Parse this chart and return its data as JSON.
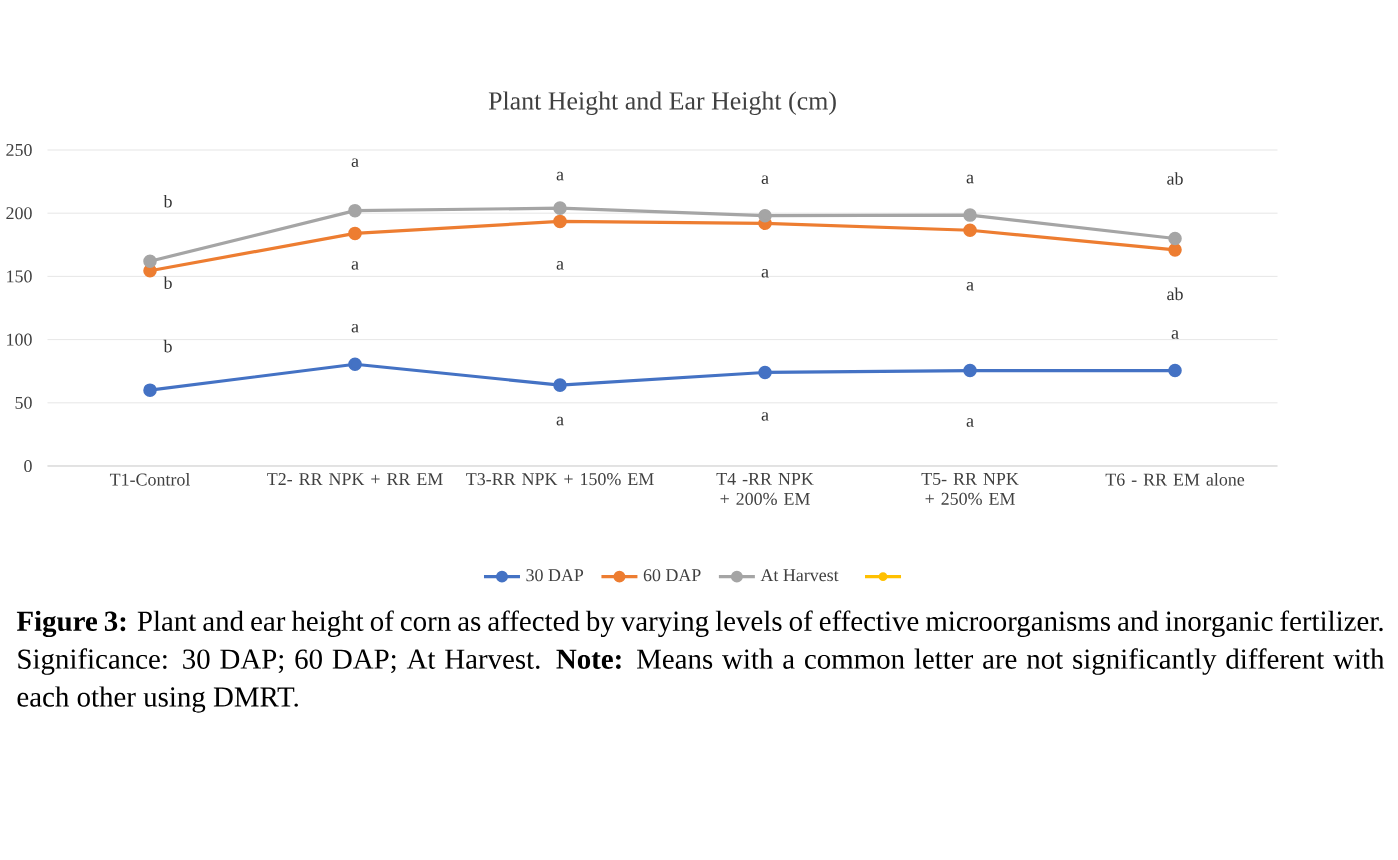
{
  "chart_data": {
    "type": "line",
    "title": "Plant Height and Ear Height (cm)",
    "categories": [
      "T1-Control",
      "T2- RR NPK + RR EM",
      "T3-RR NPK + 150% EM",
      "T4 -RR NPK + 200% EM",
      "T5- RR NPK + 250% EM",
      "T6 - RR EM alone"
    ],
    "series": [
      {
        "name": "30 DAP",
        "color": "#4472c4",
        "values": [
          60,
          80.5,
          64,
          74,
          75.5,
          75.5
        ]
      },
      {
        "name": "60 DAP",
        "color": "#ed7d31",
        "values": [
          154.5,
          184,
          193.5,
          192,
          186.5,
          171
        ]
      },
      {
        "name": "At Harvest",
        "color": "#a5a5a5",
        "values": [
          162,
          202,
          204,
          198,
          198.5,
          180
        ]
      }
    ],
    "ylim": [
      0,
      250
    ],
    "yticks": [
      0,
      50,
      100,
      150,
      200,
      250
    ],
    "grid": "y",
    "legend": "bottom",
    "marker": "circle",
    "line_style": "solid",
    "annotations": [
      "b",
      "a",
      "a",
      "a",
      "a",
      "ab",
      "b",
      "a",
      "a",
      "a",
      "a",
      "ab",
      "b",
      "a",
      "a",
      "a",
      "a",
      "a",
      "**Figure 3:** Plant and ear height of corn as affected by varying levels of effective microorganisms and inorganic fertilizer. Significance: 30 DAP; 60 DAP; At Harvest. **Note:** Means with a common letter are not significantly different with each other using DMRT."
    ]
  }
}
